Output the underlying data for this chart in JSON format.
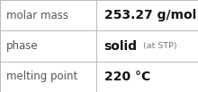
{
  "rows": [
    {
      "label": "molar mass",
      "value_parts": [
        {
          "text": "253.27 g/mol",
          "bold": true,
          "small": false
        }
      ]
    },
    {
      "label": "phase",
      "value_parts": [
        {
          "text": "solid",
          "bold": true,
          "small": false
        },
        {
          "text": " (at STP)",
          "bold": false,
          "small": true
        }
      ]
    },
    {
      "label": "melting point",
      "value_parts": [
        {
          "text": "220 °C",
          "bold": true,
          "small": false
        }
      ]
    }
  ],
  "col_split": 0.485,
  "background_color": "#ffffff",
  "border_color": "#bbbbbb",
  "label_color": "#555555",
  "value_color": "#111111",
  "small_color": "#777777",
  "label_fontsize": 8.5,
  "value_fontsize": 10.0,
  "small_fontsize": 6.8
}
